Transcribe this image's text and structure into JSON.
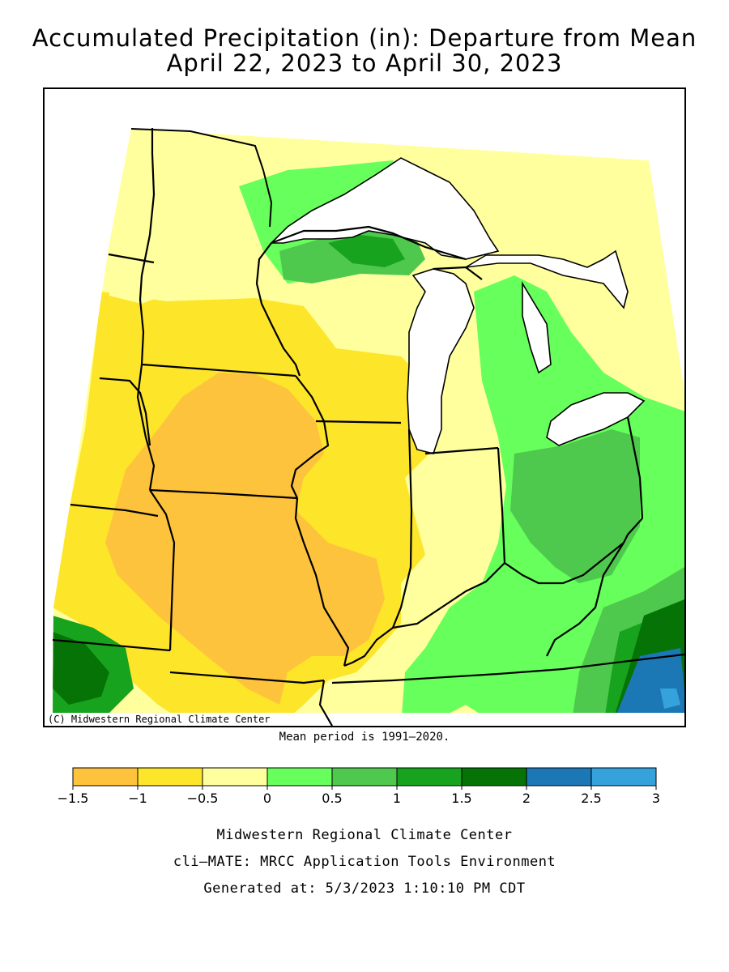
{
  "title": {
    "line1": "Accumulated Precipitation (in): Departure from Mean",
    "line2": "April 22, 2023 to April 30, 2023"
  },
  "map": {
    "copyright": "(C) Midwestern Regional Climate Center",
    "mean_period": "Mean period is 1991–2020.",
    "background_color": "#ffffff",
    "lake_color": "#ffffff"
  },
  "legend": {
    "ticks": [
      "−1.5",
      "−1",
      "−0.5",
      "0",
      "0.5",
      "1",
      "1.5",
      "2",
      "2.5",
      "3"
    ],
    "bins": [
      {
        "from": "-1.5",
        "to": "-1",
        "color": "#fdc33d"
      },
      {
        "from": "-1",
        "to": "-0.5",
        "color": "#fde52a"
      },
      {
        "from": "-0.5",
        "to": "0",
        "color": "#ffff9e"
      },
      {
        "from": "0",
        "to": "0.5",
        "color": "#66ff5b"
      },
      {
        "from": "0.5",
        "to": "1",
        "color": "#4ec94d"
      },
      {
        "from": "1",
        "to": "1.5",
        "color": "#17a31e"
      },
      {
        "from": "1.5",
        "to": "2",
        "color": "#057305"
      },
      {
        "from": "2",
        "to": "2.5",
        "color": "#1b78b4"
      },
      {
        "from": "2.5",
        "to": "3",
        "color": "#36a2dc"
      }
    ]
  },
  "footer": {
    "line1": "Midwestern Regional Climate Center",
    "line2": "cli–MATE: MRCC Application Tools Environment",
    "line3": "Generated at: 5/3/2023 1:10:10 PM CDT"
  }
}
